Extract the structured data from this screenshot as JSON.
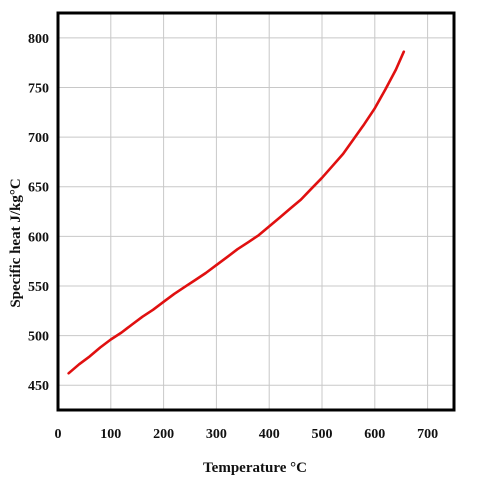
{
  "chart_data": {
    "type": "line",
    "title": "",
    "xlabel": "Temperature °C",
    "ylabel": "Specific heat  J/kg°C",
    "xlim": [
      0,
      750
    ],
    "ylim": [
      425,
      825
    ],
    "x_ticks": [
      0,
      100,
      200,
      300,
      400,
      500,
      600,
      700
    ],
    "y_ticks": [
      450,
      500,
      550,
      600,
      650,
      700,
      750,
      800
    ],
    "grid": true,
    "legend": "none",
    "series_color": "#e01010",
    "frame_color": "#000000",
    "grid_color": "#c8c8c8",
    "series": [
      {
        "x": [
          20,
          40,
          60,
          80,
          100,
          120,
          140,
          160,
          180,
          200,
          220,
          240,
          260,
          280,
          300,
          320,
          340,
          360,
          380,
          400,
          420,
          440,
          460,
          480,
          500,
          520,
          540,
          560,
          580,
          600,
          620,
          640,
          655
        ],
        "values": [
          462,
          471,
          479,
          488,
          496,
          503,
          511,
          519,
          526,
          534,
          542,
          549,
          556,
          563,
          571,
          579,
          587,
          594,
          601,
          610,
          619,
          628,
          637,
          648,
          659,
          671,
          683,
          698,
          713,
          729,
          748,
          768,
          786
        ]
      }
    ]
  }
}
